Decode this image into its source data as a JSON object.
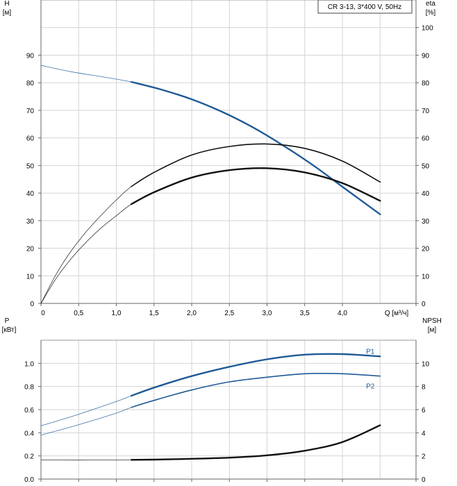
{
  "chart_data": [
    {
      "type": "line",
      "legend": "CR 3-13, 3*400 V, 50Hz",
      "y_left_label": [
        "H",
        "[м]"
      ],
      "y_right_label": [
        "eta",
        "[%]"
      ],
      "x_label": "Q [м³/ч]",
      "x_ticks": [
        "0",
        "0,5",
        "1,0",
        "1,5",
        "2,0",
        "2,5",
        "3,0",
        "3,5",
        "4,0"
      ],
      "y_left_ticks": [
        "0",
        "10",
        "20",
        "30",
        "40",
        "50",
        "60",
        "70",
        "80",
        "90"
      ],
      "y_right_ticks": [
        "0",
        "10",
        "20",
        "30",
        "40",
        "50",
        "60",
        "70",
        "80",
        "90",
        "100"
      ],
      "xlim": [
        0,
        4.8
      ],
      "ylim_left": [
        0,
        110
      ],
      "ylim_right": [
        0,
        110
      ],
      "grid": true,
      "series": [
        {
          "axis": "left",
          "color": "#1f5a96",
          "x": [
            0,
            0.4,
            0.8,
            1.2,
            1.6,
            2.0,
            2.4,
            2.8,
            3.2,
            3.6,
            4.0,
            4.5
          ],
          "values": [
            86.3,
            84.0,
            82.2,
            80.3,
            77.5,
            74.0,
            69.5,
            64.0,
            57.5,
            50.3,
            42.3,
            32.3
          ],
          "working_range": [
            1.2,
            4.5
          ],
          "strong": true
        },
        {
          "axis": "right",
          "color": "#111111",
          "x": [
            0,
            0.2,
            0.4,
            0.6,
            0.8,
            1.0,
            1.2,
            1.5,
            2.0,
            2.5,
            3.0,
            3.5,
            4.0,
            4.5
          ],
          "values": [
            0,
            10.5,
            19.0,
            26.0,
            32.0,
            37.5,
            42.4,
            47.5,
            53.8,
            56.9,
            57.8,
            56.2,
            51.6,
            44.0
          ],
          "working_range": [
            1.2,
            4.5
          ],
          "strong": false
        },
        {
          "axis": "right",
          "color": "#111111",
          "x": [
            0,
            0.2,
            0.4,
            0.6,
            0.8,
            1.0,
            1.2,
            1.5,
            2.0,
            2.5,
            3.0,
            3.5,
            4.0,
            4.5
          ],
          "values": [
            0,
            9.0,
            16.2,
            22.2,
            27.4,
            31.8,
            36.0,
            40.3,
            45.6,
            48.3,
            49.0,
            47.5,
            43.6,
            37.2
          ],
          "working_range": [
            1.2,
            4.5
          ],
          "strong": true
        }
      ]
    },
    {
      "type": "line",
      "y_left_label": [
        "P",
        "[кВт]"
      ],
      "y_right_label": [
        "NPSH",
        "[м]"
      ],
      "x_ticks": [
        "0",
        "0,5",
        "1,0",
        "1,5",
        "2,0",
        "2,5",
        "3,0",
        "3,5",
        "4,0"
      ],
      "y_left_ticks": [
        "0.0",
        "0.2",
        "0.4",
        "0.6",
        "0.8",
        "1.0"
      ],
      "y_right_ticks": [
        "0",
        "2",
        "4",
        "6",
        "8",
        "10"
      ],
      "xlim": [
        0,
        4.8
      ],
      "ylim_left": [
        0,
        1.2
      ],
      "ylim_right": [
        0,
        12
      ],
      "grid": true,
      "series": [
        {
          "name": "P1",
          "axis": "left",
          "color": "#1f5a96",
          "x": [
            0,
            0.5,
            1.0,
            1.2,
            1.5,
            2.0,
            2.5,
            3.0,
            3.5,
            4.0,
            4.5
          ],
          "values": [
            0.46,
            0.56,
            0.67,
            0.72,
            0.79,
            0.89,
            0.97,
            1.035,
            1.075,
            1.08,
            1.06
          ],
          "working_range": [
            1.2,
            4.5
          ],
          "strong": true
        },
        {
          "name": "P2",
          "axis": "left",
          "color": "#1f5a96",
          "x": [
            0,
            0.5,
            1.0,
            1.2,
            1.5,
            2.0,
            2.5,
            3.0,
            3.5,
            4.0,
            4.5
          ],
          "values": [
            0.38,
            0.47,
            0.57,
            0.62,
            0.68,
            0.77,
            0.84,
            0.88,
            0.91,
            0.91,
            0.89
          ],
          "working_range": [
            1.2,
            4.5
          ],
          "strong": false
        },
        {
          "axis": "right",
          "color": "#111111",
          "x": [
            0,
            0.5,
            1.0,
            1.5,
            2.0,
            2.5,
            3.0,
            3.5,
            4.0,
            4.5
          ],
          "values": [
            1.65,
            1.64,
            1.65,
            1.68,
            1.75,
            1.85,
            2.05,
            2.45,
            3.2,
            4.65
          ],
          "working_range": [
            1.2,
            4.5
          ],
          "strong": true
        }
      ]
    }
  ]
}
